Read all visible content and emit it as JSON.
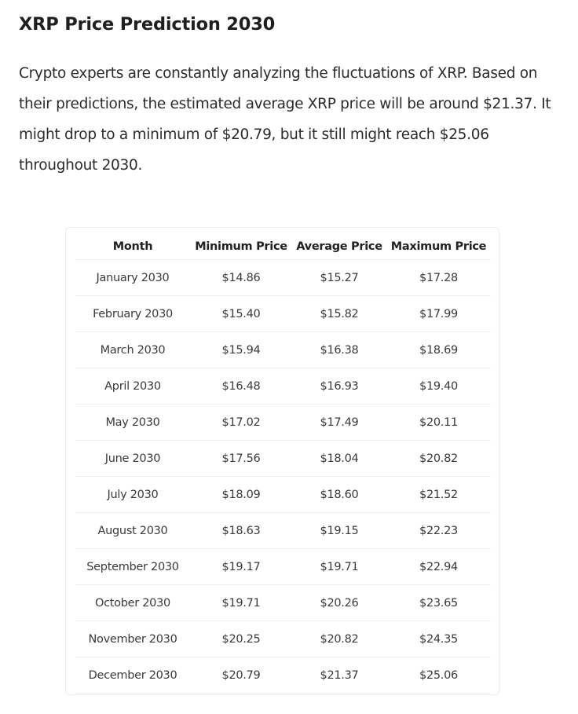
{
  "title": "XRP Price Prediction 2030",
  "intro": "Crypto experts are constantly analyzing the fluctuations of XRP. Based on their predictions, the estimated average XRP price will be around $21.37. It might drop to a minimum of $20.79, but it still might reach $25.06 throughout 2030.",
  "table": {
    "headers": [
      "Month",
      "Minimum Price",
      "Average Price",
      "Maximum Price"
    ],
    "rows": [
      [
        "January 2030",
        "$14.86",
        "$15.27",
        "$17.28"
      ],
      [
        "February 2030",
        "$15.40",
        "$15.82",
        "$17.99"
      ],
      [
        "March 2030",
        "$15.94",
        "$16.38",
        "$18.69"
      ],
      [
        "April 2030",
        "$16.48",
        "$16.93",
        "$19.40"
      ],
      [
        "May 2030",
        "$17.02",
        "$17.49",
        "$20.11"
      ],
      [
        "June 2030",
        "$17.56",
        "$18.04",
        "$20.82"
      ],
      [
        "July 2030",
        "$18.09",
        "$18.60",
        "$21.52"
      ],
      [
        "August 2030",
        "$18.63",
        "$19.15",
        "$22.23"
      ],
      [
        "September 2030",
        "$19.17",
        "$19.71",
        "$22.94"
      ],
      [
        "October 2030",
        "$19.71",
        "$20.26",
        "$23.65"
      ],
      [
        "November 2030",
        "$20.25",
        "$20.82",
        "$24.35"
      ],
      [
        "December 2030",
        "$20.79",
        "$21.37",
        "$25.06"
      ]
    ]
  }
}
